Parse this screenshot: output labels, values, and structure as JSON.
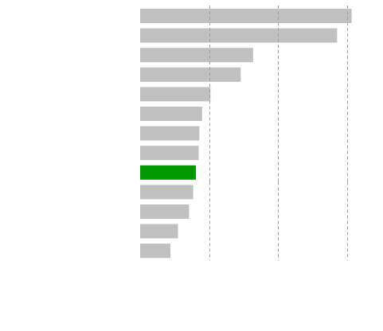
{
  "chart_data": {
    "type": "bar",
    "orientation": "horizontal",
    "title": "",
    "xlabel": "",
    "ylabel": "",
    "categories": [
      "",
      "",
      "",
      "",
      "",
      "",
      "",
      "",
      "",
      "",
      "",
      "",
      ""
    ],
    "values": [
      3.07,
      2.86,
      1.64,
      1.46,
      1.02,
      0.9,
      0.86,
      0.85,
      0.81,
      0.77,
      0.71,
      0.55,
      0.44
    ],
    "highlight_index": 8,
    "xlim": [
      0,
      3.0
    ],
    "gridlines": [
      1,
      2,
      3
    ],
    "grid": true,
    "gridline_gaps": [
      [
        0,
        1,
        2,
        3
      ],
      [
        4,
        5,
        6,
        7,
        8
      ],
      [
        9,
        10,
        11,
        12
      ]
    ],
    "colors": {
      "bar": "#c0c0c0",
      "highlight": "#009900",
      "grid": "#a0a0a0",
      "background": "#ffffff"
    }
  }
}
